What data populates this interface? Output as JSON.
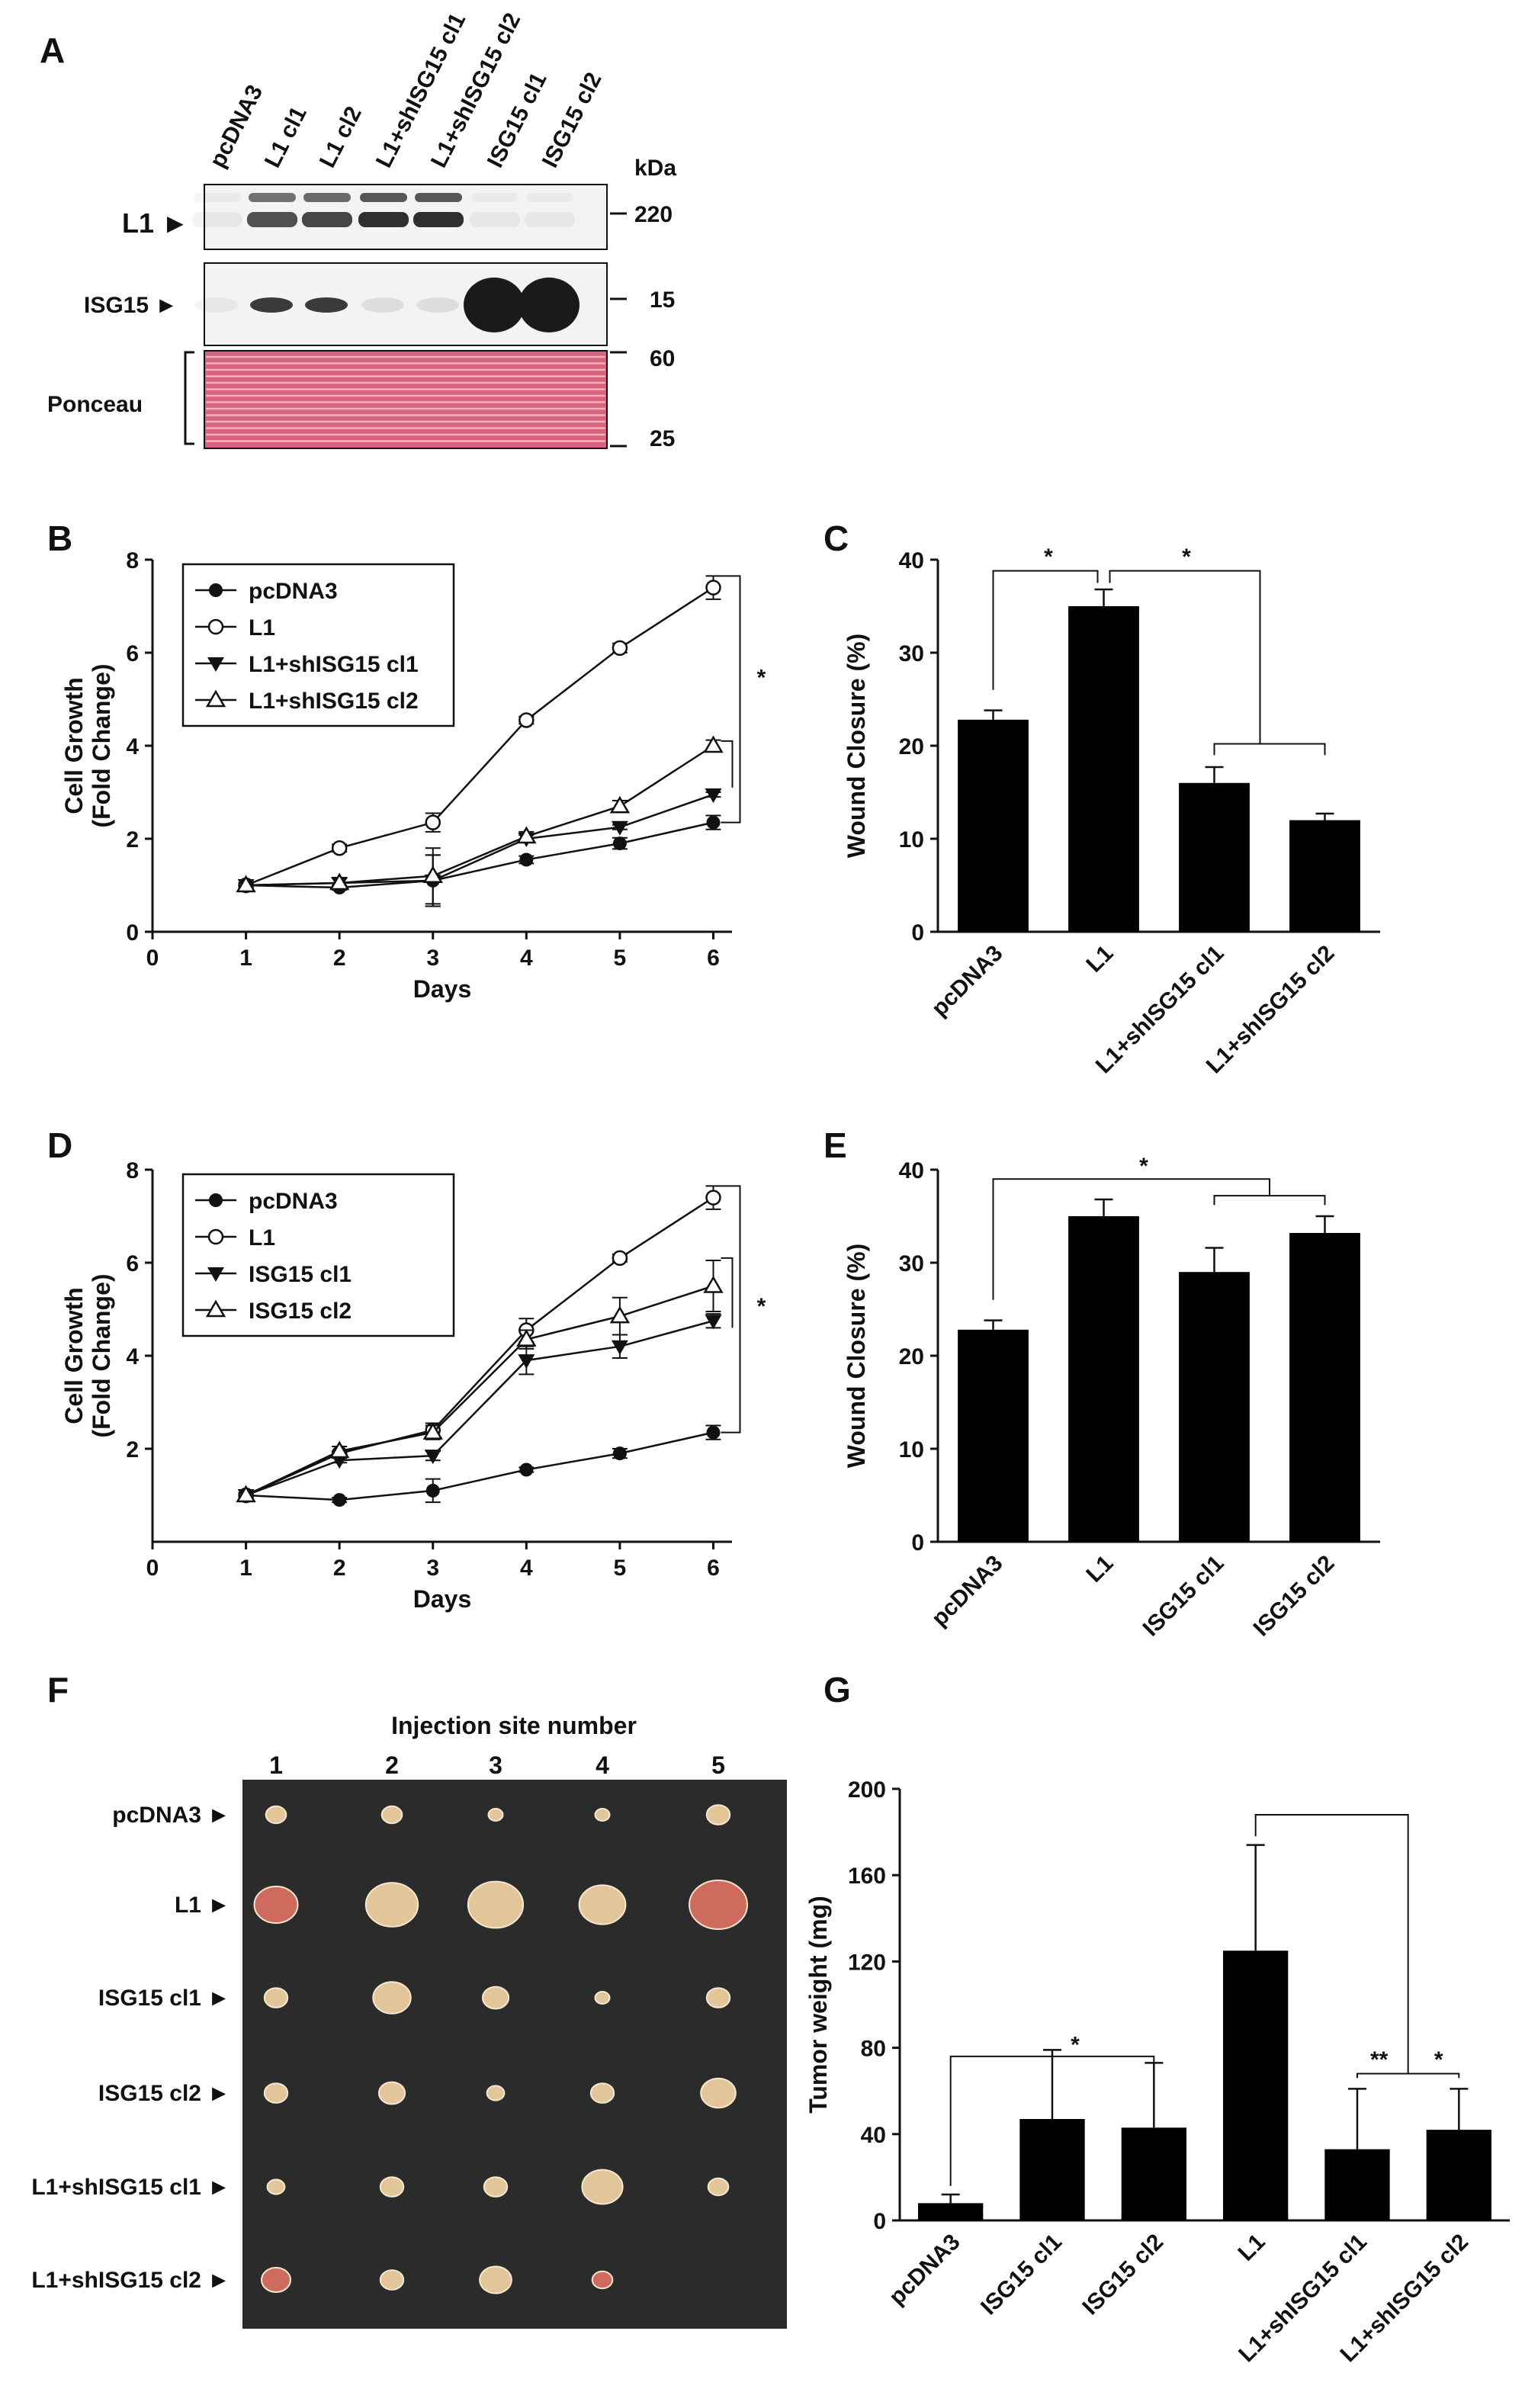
{
  "panel_labels": {
    "A": "A",
    "B": "B",
    "C": "C",
    "D": "D",
    "E": "E",
    "F": "F",
    "G": "G"
  },
  "blot": {
    "lanes": [
      "pcDNA3",
      "L1 cl1",
      "L1 cl2",
      "L1+shISG15 cl1",
      "L1+shISG15 cl2",
      "ISG15 cl1",
      "ISG15 cl2"
    ],
    "kda_label": "kDa",
    "row_labels": {
      "l1": "L1 ►",
      "isg15": "ISG15 ►",
      "ponceau": "Ponceau"
    },
    "markers": {
      "m220": "220",
      "m15": "15",
      "m60": "60",
      "m25": "25"
    },
    "colors": {
      "ponceau": "#d9627e",
      "band": "#1a1a1a"
    },
    "l1_band_intensity": [
      0.05,
      0.75,
      0.8,
      0.9,
      0.9,
      0.05,
      0.05
    ],
    "isg15_band_intensity": [
      0.05,
      0.85,
      0.85,
      0.1,
      0.1,
      1.0,
      1.0
    ]
  },
  "chart_data": [
    {
      "id": "B",
      "type": "line",
      "xlabel": "Days",
      "ylabel_line1": "Cell Growth",
      "ylabel_line2": "(Fold Change)",
      "xlim": [
        0,
        6.2
      ],
      "ylim": [
        0,
        8
      ],
      "xticks": [
        0,
        1,
        2,
        3,
        4,
        5,
        6
      ],
      "yticks": [
        0,
        2,
        4,
        6,
        8
      ],
      "x": [
        1,
        2,
        3,
        4,
        5,
        6
      ],
      "series": [
        {
          "name": "pcDNA3",
          "marker": "filled-circle",
          "values": [
            1.0,
            0.95,
            1.1,
            1.55,
            1.9,
            2.35
          ],
          "err": [
            0.05,
            0.05,
            0.55,
            0.08,
            0.12,
            0.15
          ]
        },
        {
          "name": "L1",
          "marker": "open-circle",
          "values": [
            1.0,
            1.8,
            2.35,
            4.55,
            6.1,
            7.4
          ],
          "err": [
            0.05,
            0.08,
            0.2,
            0.08,
            0.1,
            0.25
          ]
        },
        {
          "name": "L1+shISG15 cl1",
          "marker": "filled-triangle-down",
          "values": [
            1.0,
            1.05,
            1.1,
            2.0,
            2.25,
            2.95
          ],
          "err": [
            0.05,
            0.1,
            0.55,
            0.08,
            0.05,
            0.05
          ]
        },
        {
          "name": "L1+shISG15 cl2",
          "marker": "open-triangle-up",
          "values": [
            1.0,
            1.05,
            1.2,
            2.05,
            2.7,
            4.0
          ],
          "err": [
            0.05,
            0.1,
            0.6,
            0.1,
            0.12,
            0.12
          ]
        }
      ],
      "significance": "*"
    },
    {
      "id": "C",
      "type": "bar",
      "ylabel": "Wound Closure (%)",
      "ylim": [
        0,
        40
      ],
      "yticks": [
        0,
        10,
        20,
        30,
        40
      ],
      "categories": [
        "pcDNA3",
        "L1",
        "L1+shISG15 cl1",
        "L1+shISG15 cl2"
      ],
      "values": [
        22.8,
        35.0,
        16.0,
        12.0
      ],
      "err": [
        1.0,
        1.8,
        1.7,
        0.7
      ],
      "significance": [
        "*",
        "*"
      ]
    },
    {
      "id": "D",
      "type": "line",
      "xlabel": "Days",
      "ylabel_line1": "Cell Growth",
      "ylabel_line2": "(Fold Change)",
      "xlim": [
        0,
        6.2
      ],
      "ylim": [
        0,
        8
      ],
      "xticks": [
        0,
        1,
        2,
        3,
        4,
        5,
        6
      ],
      "yticks": [
        2,
        4,
        6,
        8
      ],
      "x": [
        1,
        2,
        3,
        4,
        5,
        6
      ],
      "series": [
        {
          "name": "pcDNA3",
          "marker": "filled-circle",
          "values": [
            1.0,
            0.9,
            1.1,
            1.55,
            1.9,
            2.35
          ],
          "err": [
            0.05,
            0.05,
            0.25,
            0.05,
            0.1,
            0.15
          ]
        },
        {
          "name": "L1",
          "marker": "open-circle",
          "values": [
            1.0,
            1.9,
            2.4,
            4.55,
            6.1,
            7.4
          ],
          "err": [
            0.05,
            0.05,
            0.15,
            0.25,
            0.08,
            0.25
          ]
        },
        {
          "name": "ISG15 cl1",
          "marker": "filled-triangle-down",
          "values": [
            1.0,
            1.75,
            1.85,
            3.9,
            4.2,
            4.75
          ],
          "err": [
            0.05,
            0.05,
            0.1,
            0.3,
            0.25,
            0.15
          ]
        },
        {
          "name": "ISG15 cl2",
          "marker": "open-triangle-up",
          "values": [
            1.0,
            1.95,
            2.35,
            4.35,
            4.85,
            5.5
          ],
          "err": [
            0.05,
            0.1,
            0.15,
            0.2,
            0.4,
            0.55
          ]
        }
      ],
      "significance": "*"
    },
    {
      "id": "E",
      "type": "bar",
      "ylabel": "Wound Closure (%)",
      "ylim": [
        0,
        40
      ],
      "yticks": [
        0,
        10,
        20,
        30,
        40
      ],
      "categories": [
        "pcDNA3",
        "L1",
        "ISG15 cl1",
        "ISG15 cl2"
      ],
      "values": [
        22.8,
        35.0,
        29.0,
        33.2
      ],
      "err": [
        1.0,
        1.8,
        2.6,
        1.8
      ],
      "significance": [
        "*"
      ]
    },
    {
      "id": "G",
      "type": "bar",
      "ylabel": "Tumor weight (mg)",
      "ylim": [
        0,
        200
      ],
      "yticks": [
        0,
        40,
        80,
        120,
        160,
        200
      ],
      "categories": [
        "pcDNA3",
        "ISG15 cl1",
        "ISG15 cl2",
        "L1",
        "L1+shISG15 cl1",
        "L1+shISG15 cl2"
      ],
      "values": [
        8,
        47,
        43,
        125,
        33,
        42
      ],
      "err": [
        4,
        32,
        30,
        49,
        28,
        19
      ],
      "significance": [
        "*",
        "**",
        "*"
      ]
    }
  ],
  "photo": {
    "title": "Injection site number",
    "columns": [
      "1",
      "2",
      "3",
      "4",
      "5"
    ],
    "rows": [
      "pcDNA3 ►",
      "L1 ►",
      "ISG15 cl1 ►",
      "ISG15 cl2 ►",
      "L1+shISG15 cl1 ►",
      "L1+shISG15 cl2 ►"
    ],
    "colors": {
      "background": "#2b2b2b",
      "tumor": "#e3c59a",
      "tumor_red": "#cf6a5e"
    },
    "tumor_size": [
      [
        0.35,
        0.35,
        0.25,
        0.25,
        0.4
      ],
      [
        0.75,
        0.9,
        0.95,
        0.8,
        1.0
      ],
      [
        0.4,
        0.65,
        0.45,
        0.25,
        0.4
      ],
      [
        0.4,
        0.45,
        0.3,
        0.4,
        0.6
      ],
      [
        0.3,
        0.4,
        0.4,
        0.7,
        0.35
      ],
      [
        0.5,
        0.4,
        0.55,
        0.35,
        0.0
      ]
    ]
  }
}
